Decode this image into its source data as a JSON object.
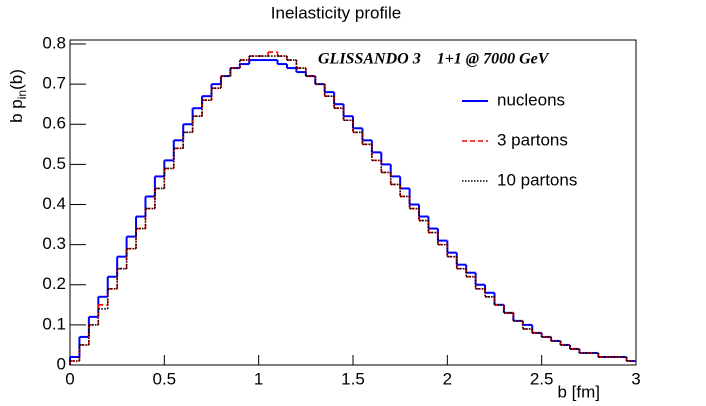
{
  "chart_data": {
    "type": "histogram",
    "title": "Inelasticity profile",
    "xlabel": "b [fm]",
    "ylabel": "b p",
    "ylabel_sub": "in",
    "ylabel_tail": "(b)",
    "annotation": "GLISSANDO 3    1+1 @ 7000 GeV",
    "bins": [
      0,
      0.05,
      0.1,
      0.15,
      0.2,
      0.25,
      0.3,
      0.35,
      0.4,
      0.45,
      0.5,
      0.55,
      0.6,
      0.65,
      0.7,
      0.75,
      0.8,
      0.85,
      0.9,
      0.95,
      1,
      1.05,
      1.1,
      1.15,
      1.2,
      1.25,
      1.3,
      1.35,
      1.4,
      1.45,
      1.5,
      1.55,
      1.6,
      1.65,
      1.7,
      1.75,
      1.8,
      1.85,
      1.9,
      1.95,
      2,
      2.05,
      2.1,
      2.15,
      2.2,
      2.25,
      2.3,
      2.35,
      2.4,
      2.45,
      2.5,
      2.55,
      2.6,
      2.65,
      2.7,
      2.75,
      2.8,
      2.85,
      2.9,
      2.95,
      3
    ],
    "series": [
      {
        "name": "nucleons",
        "color": "#0000ff",
        "dash": "solid",
        "values": [
          0.02,
          0.07,
          0.12,
          0.17,
          0.22,
          0.27,
          0.32,
          0.37,
          0.42,
          0.47,
          0.51,
          0.56,
          0.6,
          0.64,
          0.67,
          0.7,
          0.72,
          0.74,
          0.75,
          0.76,
          0.76,
          0.76,
          0.75,
          0.74,
          0.73,
          0.72,
          0.7,
          0.68,
          0.65,
          0.62,
          0.59,
          0.56,
          0.53,
          0.5,
          0.47,
          0.44,
          0.4,
          0.37,
          0.34,
          0.31,
          0.28,
          0.25,
          0.23,
          0.2,
          0.18,
          0.15,
          0.13,
          0.11,
          0.1,
          0.08,
          0.07,
          0.06,
          0.05,
          0.04,
          0.03,
          0.03,
          0.02,
          0.02,
          0.02,
          0.01
        ]
      },
      {
        "name": "3 partons",
        "color": "#ff0000",
        "dash": "dashed",
        "values": [
          0.01,
          0.05,
          0.1,
          0.15,
          0.19,
          0.24,
          0.29,
          0.34,
          0.39,
          0.44,
          0.49,
          0.54,
          0.58,
          0.62,
          0.66,
          0.69,
          0.72,
          0.74,
          0.76,
          0.77,
          0.77,
          0.78,
          0.77,
          0.76,
          0.74,
          0.72,
          0.7,
          0.67,
          0.64,
          0.61,
          0.58,
          0.55,
          0.51,
          0.48,
          0.45,
          0.42,
          0.39,
          0.36,
          0.33,
          0.3,
          0.27,
          0.24,
          0.22,
          0.19,
          0.17,
          0.15,
          0.13,
          0.11,
          0.09,
          0.08,
          0.07,
          0.06,
          0.05,
          0.04,
          0.03,
          0.03,
          0.02,
          0.02,
          0.02,
          0.01
        ]
      },
      {
        "name": "10 partons",
        "color": "#000000",
        "dash": "dotted",
        "values": [
          0.01,
          0.05,
          0.1,
          0.14,
          0.19,
          0.24,
          0.29,
          0.34,
          0.39,
          0.44,
          0.49,
          0.54,
          0.58,
          0.62,
          0.66,
          0.69,
          0.72,
          0.74,
          0.76,
          0.77,
          0.77,
          0.77,
          0.77,
          0.76,
          0.74,
          0.72,
          0.7,
          0.67,
          0.64,
          0.61,
          0.58,
          0.55,
          0.51,
          0.48,
          0.45,
          0.42,
          0.39,
          0.36,
          0.33,
          0.3,
          0.27,
          0.24,
          0.22,
          0.19,
          0.17,
          0.15,
          0.13,
          0.11,
          0.09,
          0.08,
          0.07,
          0.06,
          0.05,
          0.04,
          0.03,
          0.03,
          0.02,
          0.02,
          0.02,
          0.01
        ]
      }
    ],
    "xlim": [
      0,
      3
    ],
    "xticks": [
      0,
      0.5,
      1,
      1.5,
      2,
      2.5,
      3
    ],
    "ylim": [
      0,
      0.81
    ],
    "yticks": [
      0,
      0.1,
      0.2,
      0.3,
      0.4,
      0.5,
      0.6,
      0.7,
      0.8
    ],
    "grid": false
  }
}
